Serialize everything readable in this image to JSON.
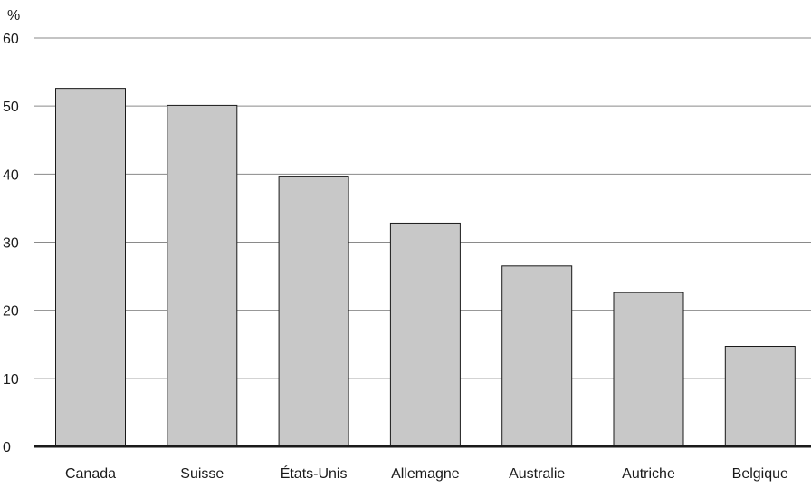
{
  "chart_data": {
    "type": "bar",
    "title": "",
    "xlabel": "",
    "ylabel": "%",
    "ylim": [
      0,
      60
    ],
    "yticks": [
      0,
      10,
      20,
      30,
      40,
      50,
      60
    ],
    "grid": true,
    "categories": [
      "Canada",
      "Suisse",
      "États-Unis",
      "Allemagne",
      "Australie",
      "Autriche",
      "Belgique"
    ],
    "values": [
      52.6,
      50.1,
      39.7,
      32.8,
      26.5,
      22.6,
      14.7
    ],
    "colors": {
      "bar_fill": "#c8c8c8",
      "bar_stroke": "#1a1a1a",
      "grid": "#8a8a8a",
      "axis": "#1a1a1a"
    }
  }
}
